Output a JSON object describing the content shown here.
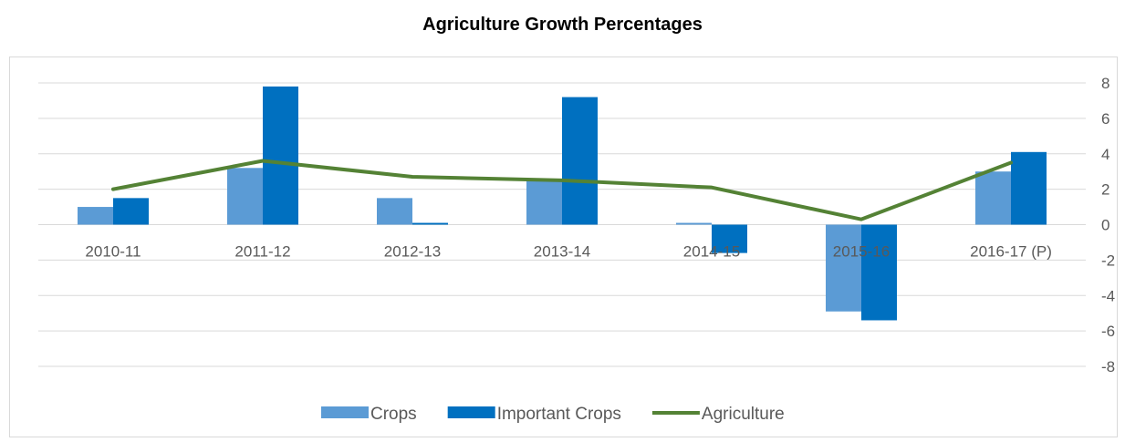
{
  "chart_data": {
    "type": "bar",
    "title": "Agriculture Growth Percentages",
    "categories": [
      "2010-11",
      "2011-12",
      "2012-13",
      "2013-14",
      "2014-15",
      "2015-16",
      "2016-17 (P)"
    ],
    "series": [
      {
        "name": "Crops",
        "kind": "bar",
        "color": "#5b9bd5",
        "values": [
          1.0,
          3.2,
          1.5,
          2.5,
          0.1,
          -4.9,
          3.0
        ]
      },
      {
        "name": "Important Crops",
        "kind": "bar",
        "color": "#0070c0",
        "values": [
          1.5,
          7.8,
          0.1,
          7.2,
          -1.6,
          -5.4,
          4.1
        ]
      },
      {
        "name": "Agriculture",
        "kind": "line",
        "color": "#548235",
        "values": [
          2.0,
          3.6,
          2.7,
          2.5,
          2.1,
          0.3,
          3.5
        ]
      }
    ],
    "yticks": [
      "8",
      "6",
      "4",
      "2",
      "0",
      "-2",
      "-4",
      "-6",
      "-8"
    ],
    "ylim": [
      -8,
      8
    ],
    "y_axis_side": "right",
    "grid": true,
    "legend_position": "bottom"
  }
}
